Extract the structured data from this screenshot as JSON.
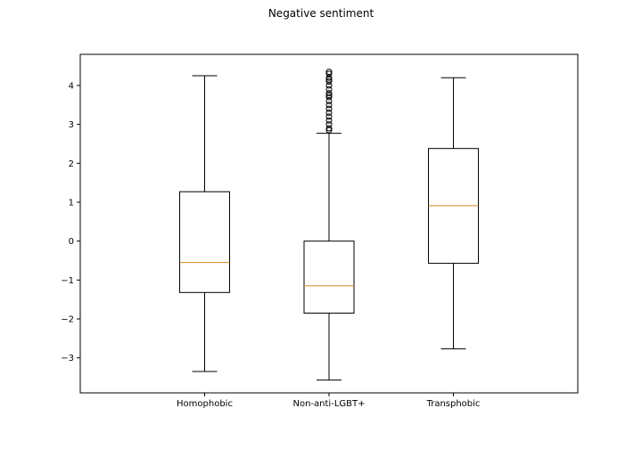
{
  "chart_data": {
    "type": "boxplot",
    "title": "Negative sentiment",
    "xlabel": "",
    "ylabel": "",
    "categories": [
      "Homophobic",
      "Non-anti-LGBT+",
      "Transphobic"
    ],
    "ylim": [
      -3.9,
      4.8
    ],
    "yticks": [
      -3,
      -2,
      -1,
      0,
      1,
      2,
      3,
      4
    ],
    "ytick_labels": [
      "−3",
      "−2",
      "−1",
      "0",
      "1",
      "2",
      "3",
      "4"
    ],
    "grid": false,
    "boxes": [
      {
        "name": "Homophobic",
        "whisker_low": -3.35,
        "q1": -1.32,
        "median": -0.55,
        "q3": 1.27,
        "whisker_high": 4.25,
        "outliers": []
      },
      {
        "name": "Non-anti-LGBT+",
        "whisker_low": -3.57,
        "q1": -1.85,
        "median": -1.15,
        "q3": 0.0,
        "whisker_high": 2.77,
        "outliers": [
          2.85,
          2.9,
          3.0,
          3.1,
          3.2,
          3.3,
          3.4,
          3.5,
          3.6,
          3.7,
          3.75,
          3.8,
          3.9,
          4.0,
          4.1,
          4.15,
          4.2,
          4.3,
          4.35
        ]
      },
      {
        "name": "Transphobic",
        "whisker_low": -2.77,
        "q1": -0.57,
        "median": 0.91,
        "q3": 2.38,
        "whisker_high": 4.2,
        "outliers": []
      }
    ],
    "colors": {
      "box": "#000000",
      "median": "#d4881e",
      "outlier": "#000000"
    }
  }
}
